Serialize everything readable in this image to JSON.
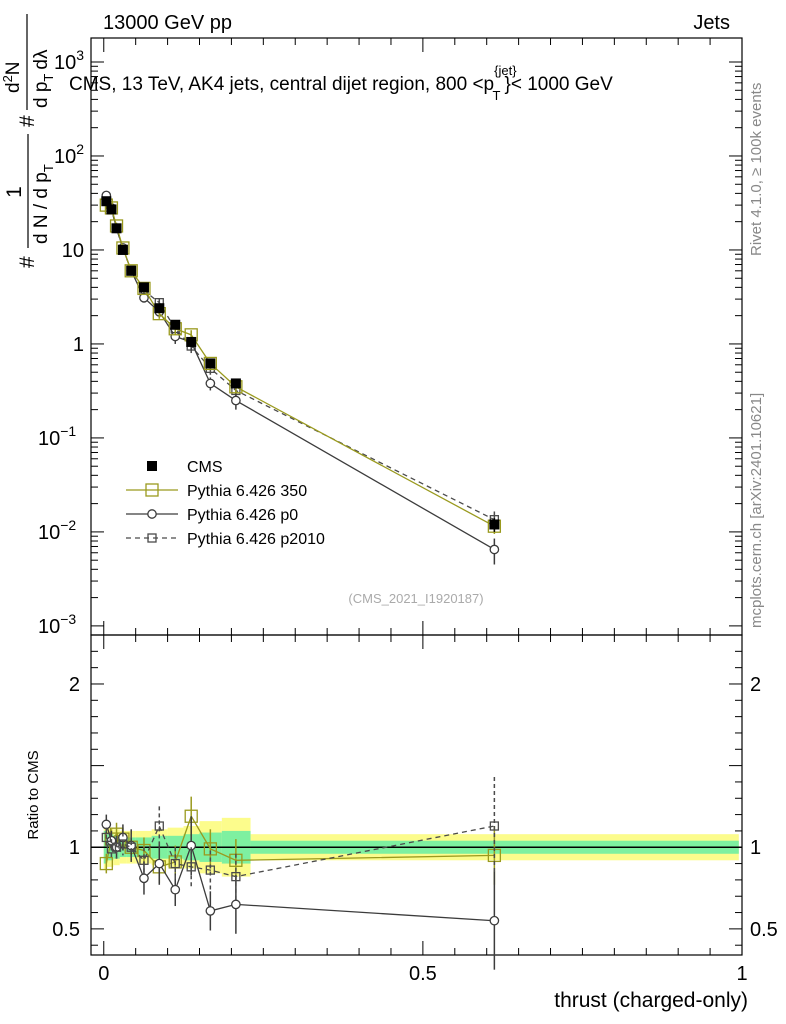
{
  "header": {
    "left": "13000 GeV pp",
    "right": "Jets"
  },
  "title": {
    "main": "CMS, 13 TeV, AK4 jets, central dijet region, 800 <p",
    "sup": "{jet}",
    "sub": "T",
    "tail": "}< 1000 GeV"
  },
  "side_labels": {
    "rivet": "Rivet 4.1.0, ≥ 100k events",
    "mcplots": "mcplots.cern.ch [arXiv:2401.10621]"
  },
  "watermark": "(CMS_2021_I1920187)",
  "ylabel_main": {
    "hash1": "#",
    "one": "1",
    "dn_dpt": "d N / d p",
    "t1": "T",
    "hash2": "#",
    "d2n": "d",
    "two": "2",
    "n": "N",
    "dpt": "d p",
    "t2": "T",
    "dlambda": "dλ"
  },
  "chart_data": [
    {
      "type": "line",
      "panel": "main",
      "yscale": "log",
      "xlim": [
        -0.02,
        1.0
      ],
      "ylim": [
        0.0008,
        1800
      ],
      "y_ticks": [
        {
          "value": 0.001,
          "base": "10",
          "exp": "−3"
        },
        {
          "value": 0.01,
          "base": "10",
          "exp": "−2"
        },
        {
          "value": 0.1,
          "base": "10",
          "exp": "−1"
        },
        {
          "value": 1,
          "base": "1",
          "exp": ""
        },
        {
          "value": 10,
          "base": "10",
          "exp": ""
        },
        {
          "value": 100,
          "base": "10",
          "exp": "2"
        },
        {
          "value": 1000,
          "base": "10",
          "exp": "3"
        }
      ],
      "legend": [
        {
          "label": "CMS",
          "style": "cms"
        },
        {
          "label": "Pythia 6.426 350",
          "style": "p350"
        },
        {
          "label": "Pythia 6.426 p0",
          "style": "p0"
        },
        {
          "label": "Pythia 6.426 p2010",
          "style": "p2010"
        }
      ],
      "series": [
        {
          "name": "CMS",
          "style": "cms",
          "x": [
            0.004,
            0.012,
            0.02,
            0.03,
            0.043,
            0.063,
            0.087,
            0.112,
            0.137,
            0.167,
            0.207,
            0.612
          ],
          "y": [
            33,
            27,
            17,
            10,
            6,
            4,
            2.4,
            1.6,
            1.05,
            0.62,
            0.38,
            0.012
          ],
          "err": [
            3,
            2.5,
            1.5,
            0.8,
            0.5,
            0.35,
            0.25,
            0.15,
            0.1,
            0.06,
            0.04,
            0.002
          ]
        },
        {
          "name": "Pythia 6.426 350",
          "style": "p350",
          "x": [
            0.004,
            0.012,
            0.02,
            0.03,
            0.043,
            0.063,
            0.087,
            0.112,
            0.137,
            0.167,
            0.207,
            0.612
          ],
          "y": [
            30,
            28,
            18,
            10.5,
            6,
            3.9,
            2.1,
            1.45,
            1.25,
            0.62,
            0.35,
            0.0115
          ],
          "err": [
            3,
            2,
            1.5,
            0.9,
            0.6,
            0.4,
            0.25,
            0.2,
            0.15,
            0.08,
            0.05,
            0.002
          ]
        },
        {
          "name": "Pythia 6.426 p0",
          "style": "p0",
          "x": [
            0.004,
            0.012,
            0.02,
            0.03,
            0.043,
            0.063,
            0.087,
            0.112,
            0.137,
            0.167,
            0.207,
            0.612
          ],
          "y": [
            38,
            28,
            17,
            10.5,
            6,
            3.1,
            2.2,
            1.2,
            1.05,
            0.38,
            0.25,
            0.0065
          ],
          "err": [
            3,
            2.5,
            1.5,
            1,
            0.6,
            0.35,
            0.3,
            0.2,
            0.2,
            0.06,
            0.05,
            0.002
          ]
        },
        {
          "name": "Pythia 6.426 p2010",
          "style": "p2010",
          "x": [
            0.004,
            0.012,
            0.02,
            0.03,
            0.043,
            0.063,
            0.087,
            0.112,
            0.137,
            0.167,
            0.207,
            0.612
          ],
          "y": [
            35,
            27,
            17,
            10.2,
            6.1,
            3.7,
            2.75,
            1.45,
            0.95,
            0.55,
            0.32,
            0.0135
          ],
          "err": [
            3,
            2.5,
            1.5,
            0.9,
            0.6,
            0.4,
            0.3,
            0.2,
            0.15,
            0.08,
            0.05,
            0.003
          ]
        }
      ]
    },
    {
      "type": "line",
      "panel": "ratio",
      "ylabel": "Ratio to CMS",
      "xlabel": "thrust (charged-only)",
      "xlim": [
        -0.02,
        1.0
      ],
      "ylim": [
        0.34,
        2.3
      ],
      "x_ticks": [
        {
          "value": 0,
          "label": "0"
        },
        {
          "value": 0.5,
          "label": "0.5"
        },
        {
          "value": 1,
          "label": "1"
        }
      ],
      "y_ticks": [
        {
          "value": 0.5,
          "label": "0.5"
        },
        {
          "value": 1,
          "label": "1"
        },
        {
          "value": 2,
          "label": "2"
        }
      ],
      "bands": [
        {
          "x0": 0.0,
          "x1": 0.005,
          "stat": 0.1,
          "total": 0.14
        },
        {
          "x0": 0.005,
          "x1": 0.015,
          "stat": 0.08,
          "total": 0.12
        },
        {
          "x0": 0.015,
          "x1": 0.025,
          "stat": 0.07,
          "total": 0.11
        },
        {
          "x0": 0.025,
          "x1": 0.035,
          "stat": 0.06,
          "total": 0.1
        },
        {
          "x0": 0.035,
          "x1": 0.05,
          "stat": 0.06,
          "total": 0.1
        },
        {
          "x0": 0.05,
          "x1": 0.075,
          "stat": 0.06,
          "total": 0.1
        },
        {
          "x0": 0.075,
          "x1": 0.1,
          "stat": 0.07,
          "total": 0.11
        },
        {
          "x0": 0.1,
          "x1": 0.125,
          "stat": 0.07,
          "total": 0.12
        },
        {
          "x0": 0.125,
          "x1": 0.15,
          "stat": 0.08,
          "total": 0.13
        },
        {
          "x0": 0.15,
          "x1": 0.185,
          "stat": 0.09,
          "total": 0.16
        },
        {
          "x0": 0.185,
          "x1": 0.23,
          "stat": 0.1,
          "total": 0.18
        },
        {
          "x0": 0.23,
          "x1": 0.995,
          "stat": 0.04,
          "total": 0.08
        }
      ],
      "series": [
        {
          "name": "Pythia 6.426 350",
          "style": "p350",
          "x": [
            0.004,
            0.012,
            0.02,
            0.03,
            0.043,
            0.063,
            0.087,
            0.112,
            0.137,
            0.167,
            0.207,
            0.612
          ],
          "y": [
            0.9,
            1.05,
            1.08,
            1.05,
            1.0,
            0.98,
            0.88,
            0.91,
            1.19,
            0.99,
            0.92,
            0.95
          ],
          "err": [
            0.06,
            0.06,
            0.07,
            0.07,
            0.08,
            0.08,
            0.1,
            0.1,
            0.12,
            0.12,
            0.13,
            0.18
          ]
        },
        {
          "name": "Pythia 6.426 p0",
          "style": "p0",
          "x": [
            0.004,
            0.012,
            0.02,
            0.03,
            0.043,
            0.063,
            0.087,
            0.112,
            0.137,
            0.167,
            0.207,
            0.612
          ],
          "y": [
            1.14,
            1.04,
            1.0,
            1.06,
            1.01,
            0.81,
            0.9,
            0.74,
            1.01,
            0.61,
            0.65,
            0.55
          ],
          "err": [
            0.06,
            0.06,
            0.07,
            0.08,
            0.1,
            0.1,
            0.13,
            0.1,
            0.18,
            0.12,
            0.18,
            0.3
          ]
        },
        {
          "name": "Pythia 6.426 p2010",
          "style": "p2010",
          "x": [
            0.004,
            0.012,
            0.02,
            0.03,
            0.043,
            0.063,
            0.087,
            0.112,
            0.137,
            0.167,
            0.207,
            0.612
          ],
          "y": [
            1.06,
            0.99,
            1.0,
            1.02,
            1.0,
            0.92,
            1.13,
            0.9,
            0.88,
            0.86,
            0.82,
            1.13
          ],
          "err": [
            0.06,
            0.06,
            0.07,
            0.07,
            0.08,
            0.08,
            0.12,
            0.1,
            0.12,
            0.12,
            0.14,
            0.3
          ]
        }
      ]
    }
  ],
  "colors": {
    "cms": "#000000",
    "p350": "#9a9a1e",
    "p0": "#3c3c3c",
    "p2010": "#4b4b4b",
    "band_inner": "#7ef0a0",
    "band_outer": "#fcfc8c"
  }
}
